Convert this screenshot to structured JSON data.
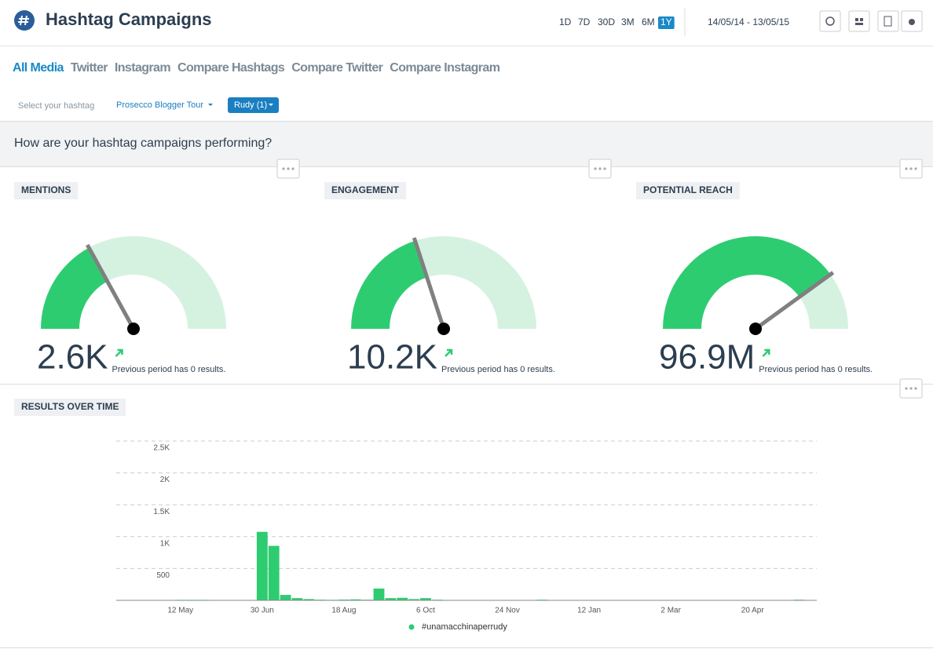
{
  "header": {
    "title": "Hashtag Campaigns",
    "ranges": [
      "1D",
      "7D",
      "30D",
      "3M",
      "6M",
      "1Y"
    ],
    "active_range": 5,
    "date_range": "14/05/14 - 13/05/15"
  },
  "tabs": {
    "items": [
      "All Media",
      "Twitter",
      "Instagram",
      "Compare Hashtags",
      "Compare Twitter",
      "Compare Instagram"
    ],
    "active": 0
  },
  "filters": {
    "label": "Select your hashtag",
    "campaign": "Prosecco Blogger Tour",
    "selection": "Rudy (1)"
  },
  "section_title": "How are your hashtag campaigns performing?",
  "gauges": [
    {
      "title": "MENTIONS",
      "value_label": "2.6K",
      "note": "Previous period has 0 results.",
      "percent": 34
    },
    {
      "title": "ENGAGEMENT",
      "value_label": "10.2K",
      "note": "Previous period has 0 results.",
      "percent": 40
    },
    {
      "title": "POTENTIAL REACH",
      "value_label": "96.9M",
      "note": "Previous period has 0 results.",
      "percent": 80
    }
  ],
  "chart_data": {
    "type": "bar",
    "title": "RESULTS OVER TIME",
    "categories": [
      null,
      null,
      null,
      null,
      null,
      "12 May",
      null,
      null,
      null,
      null,
      null,
      null,
      "30 Jun",
      null,
      null,
      null,
      null,
      null,
      null,
      "18 Aug",
      null,
      null,
      null,
      null,
      null,
      null,
      "6 Oct",
      null,
      null,
      null,
      null,
      null,
      null,
      "24 Nov",
      null,
      null,
      null,
      null,
      null,
      null,
      "12 Jan",
      null,
      null,
      null,
      null,
      null,
      null,
      "2 Mar",
      null,
      null,
      null,
      null,
      null,
      null,
      "20 Apr",
      null,
      null,
      null,
      null,
      null
    ],
    "series": [
      {
        "name": "#unamacchinaperrudy",
        "color": "#2ecc71",
        "values": [
          0,
          0,
          0,
          0,
          0,
          8,
          8,
          8,
          0,
          5,
          0,
          0,
          1075,
          855,
          85,
          35,
          20,
          10,
          8,
          12,
          15,
          10,
          185,
          35,
          40,
          20,
          35,
          10,
          5,
          5,
          5,
          5,
          5,
          5,
          5,
          5,
          10,
          5,
          5,
          5,
          5,
          5,
          5,
          5,
          5,
          5,
          5,
          5,
          5,
          5,
          5,
          5,
          5,
          5,
          5,
          5,
          5,
          5,
          10,
          0
        ]
      }
    ],
    "ylim": [
      0,
      2500
    ],
    "yticks": [
      500,
      {
        "value": 1000,
        "label": "1K"
      },
      {
        "value": 1500,
        "label": "1.5K"
      },
      {
        "value": 2000,
        "label": "2K"
      },
      {
        "value": 2500,
        "label": "2.5K"
      }
    ],
    "grid": true
  }
}
